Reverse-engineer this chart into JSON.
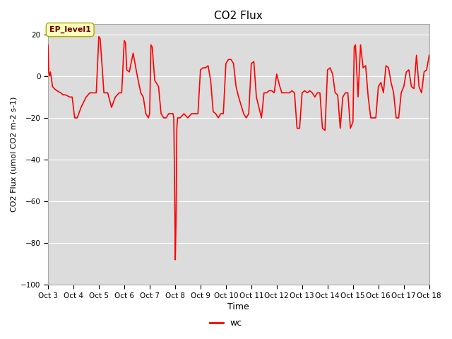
{
  "title": "CO2 Flux",
  "xlabel": "Time",
  "ylabel": "CO2 Flux (umol CO2 m-2 s-1)",
  "ylim": [
    -100,
    25
  ],
  "yticks": [
    -100,
    -80,
    -60,
    -40,
    -20,
    0,
    20
  ],
  "line_color": "#FF0000",
  "line_width": 1.2,
  "bg_color": "#DCDCDC",
  "annotation_text": "EP_level1",
  "annotation_bg": "#FFFFBB",
  "annotation_border": "#AAAA00",
  "legend_label": "wc",
  "x_dates": [
    "Oct 3",
    "Oct 4",
    "Oct 5",
    "Oct 6",
    "Oct 7",
    "Oct 8",
    "Oct 9",
    "Oct 10",
    "Oct 11",
    "Oct 12",
    "Oct 13",
    "Oct 14",
    "Oct 15",
    "Oct 16",
    "Oct 17",
    "Oct 18"
  ],
  "x_numeric": [
    3,
    4,
    5,
    6,
    7,
    8,
    9,
    10,
    11,
    12,
    13,
    14,
    15,
    16,
    17,
    18
  ],
  "x_pts": [
    3.0,
    3.03,
    3.06,
    3.09,
    3.12,
    3.18,
    3.25,
    3.35,
    3.5,
    3.6,
    3.7,
    3.85,
    3.95,
    4.0,
    4.05,
    4.15,
    4.3,
    4.5,
    4.65,
    4.8,
    4.9,
    5.0,
    5.05,
    5.1,
    5.2,
    5.35,
    5.5,
    5.65,
    5.8,
    5.9,
    6.0,
    6.05,
    6.1,
    6.2,
    6.35,
    6.5,
    6.65,
    6.75,
    6.85,
    6.95,
    7.0,
    7.05,
    7.1,
    7.2,
    7.35,
    7.45,
    7.55,
    7.65,
    7.75,
    7.85,
    7.9,
    7.92,
    7.95,
    7.98,
    8.01,
    8.04,
    8.07,
    8.1,
    8.2,
    8.35,
    8.5,
    8.65,
    8.8,
    8.9,
    9.0,
    9.1,
    9.2,
    9.3,
    9.4,
    9.5,
    9.6,
    9.7,
    9.8,
    9.9,
    10.0,
    10.1,
    10.2,
    10.3,
    10.4,
    10.5,
    10.6,
    10.7,
    10.8,
    10.9,
    11.0,
    11.1,
    11.2,
    11.3,
    11.4,
    11.5,
    11.6,
    11.7,
    11.8,
    11.9,
    12.0,
    12.1,
    12.2,
    12.3,
    12.4,
    12.5,
    12.6,
    12.7,
    12.8,
    12.9,
    13.0,
    13.1,
    13.2,
    13.3,
    13.4,
    13.5,
    13.6,
    13.7,
    13.8,
    13.9,
    14.0,
    14.1,
    14.2,
    14.3,
    14.4,
    14.5,
    14.6,
    14.7,
    14.8,
    14.9,
    15.0,
    15.05,
    15.1,
    15.2,
    15.3,
    15.4,
    15.5,
    15.6,
    15.7,
    15.8,
    15.9,
    16.0,
    16.1,
    16.2,
    16.3,
    16.4,
    16.5,
    16.6,
    16.7,
    16.8,
    16.9,
    17.0,
    17.1,
    17.2,
    17.3,
    17.4,
    17.5,
    17.6,
    17.7,
    17.8,
    17.9,
    18.0
  ],
  "y_pts": [
    15,
    2,
    0,
    2,
    0,
    -5,
    -6,
    -7,
    -8,
    -9,
    -9,
    -10,
    -10,
    -15,
    -20,
    -20,
    -15,
    -10,
    -8,
    -8,
    -8,
    19,
    18,
    10,
    -8,
    -8,
    -15,
    -10,
    -8,
    -8,
    17,
    16,
    3,
    2,
    11,
    1,
    -8,
    -10,
    -18,
    -20,
    -18,
    15,
    14,
    -2,
    -5,
    -18,
    -20,
    -20,
    -18,
    -18,
    -18,
    -18,
    -20,
    -50,
    -88,
    -68,
    -25,
    -20,
    -20,
    -18,
    -20,
    -18,
    -18,
    -18,
    3,
    4,
    4,
    5,
    -2,
    -17,
    -18,
    -20,
    -18,
    -18,
    6,
    8,
    8,
    6,
    -5,
    -10,
    -14,
    -18,
    -20,
    -18,
    6,
    7,
    -10,
    -15,
    -20,
    -8,
    -8,
    -7,
    -7,
    -8,
    1,
    -4,
    -8,
    -8,
    -8,
    -8,
    -7,
    -8,
    -25,
    -25,
    -8,
    -7,
    -8,
    -7,
    -8,
    -10,
    -8,
    -8,
    -25,
    -26,
    3,
    4,
    1,
    -8,
    -9,
    -25,
    -10,
    -8,
    -8,
    -25,
    -22,
    14,
    15,
    -10,
    15,
    4,
    5,
    -10,
    -20,
    -20,
    -20,
    -5,
    -3,
    -8,
    5,
    4,
    -3,
    -8,
    -20,
    -20,
    -8,
    -5,
    2,
    3,
    -5,
    -6,
    10,
    -5,
    -8,
    2,
    3,
    10
  ]
}
